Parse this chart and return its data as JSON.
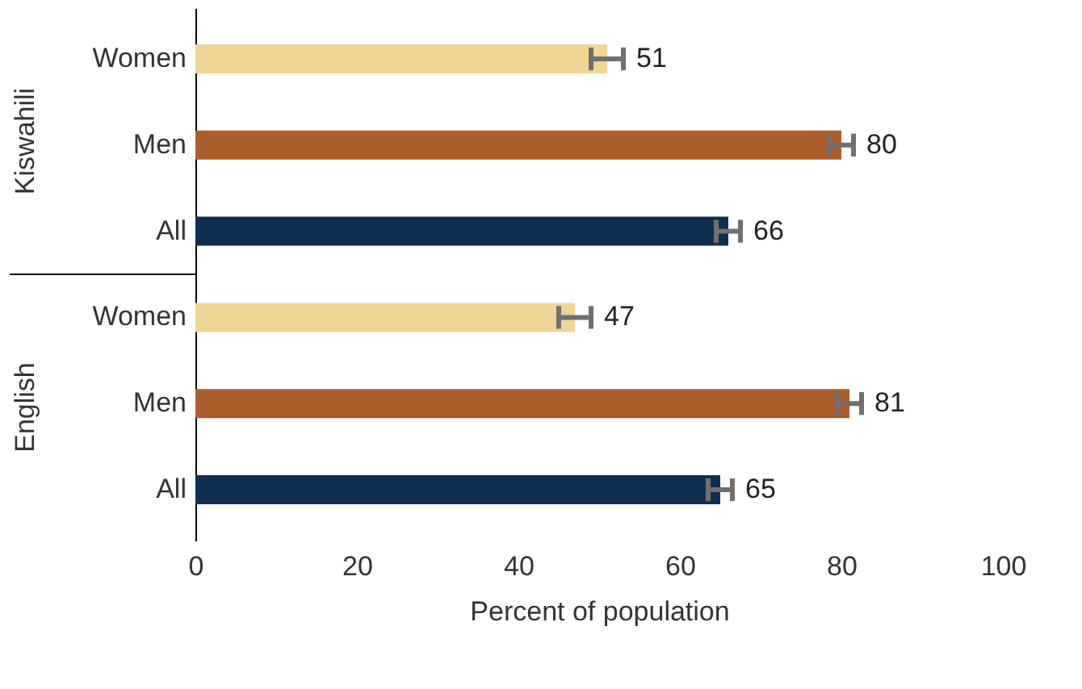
{
  "chart_data": {
    "type": "bar",
    "orientation": "horizontal",
    "xlabel": "Percent of population",
    "categories": [
      "Women",
      "Men",
      "All",
      "Women",
      "Men",
      "All"
    ],
    "values": [
      51,
      80,
      66,
      47,
      81,
      65
    ],
    "colors": [
      "#f0d594",
      "#aa5e2a",
      "#0e2f51",
      "#f0d594",
      "#aa5e2a",
      "#0e2f51"
    ],
    "errors": [
      2,
      1.5,
      1.5,
      2,
      1.5,
      1.5
    ],
    "annotations": [
      "Kiswahili",
      "English"
    ],
    "data_labels": true,
    "xlim": [
      0,
      100
    ],
    "xticks": [
      0,
      20,
      40,
      60,
      80,
      100
    ],
    "grid": false
  }
}
